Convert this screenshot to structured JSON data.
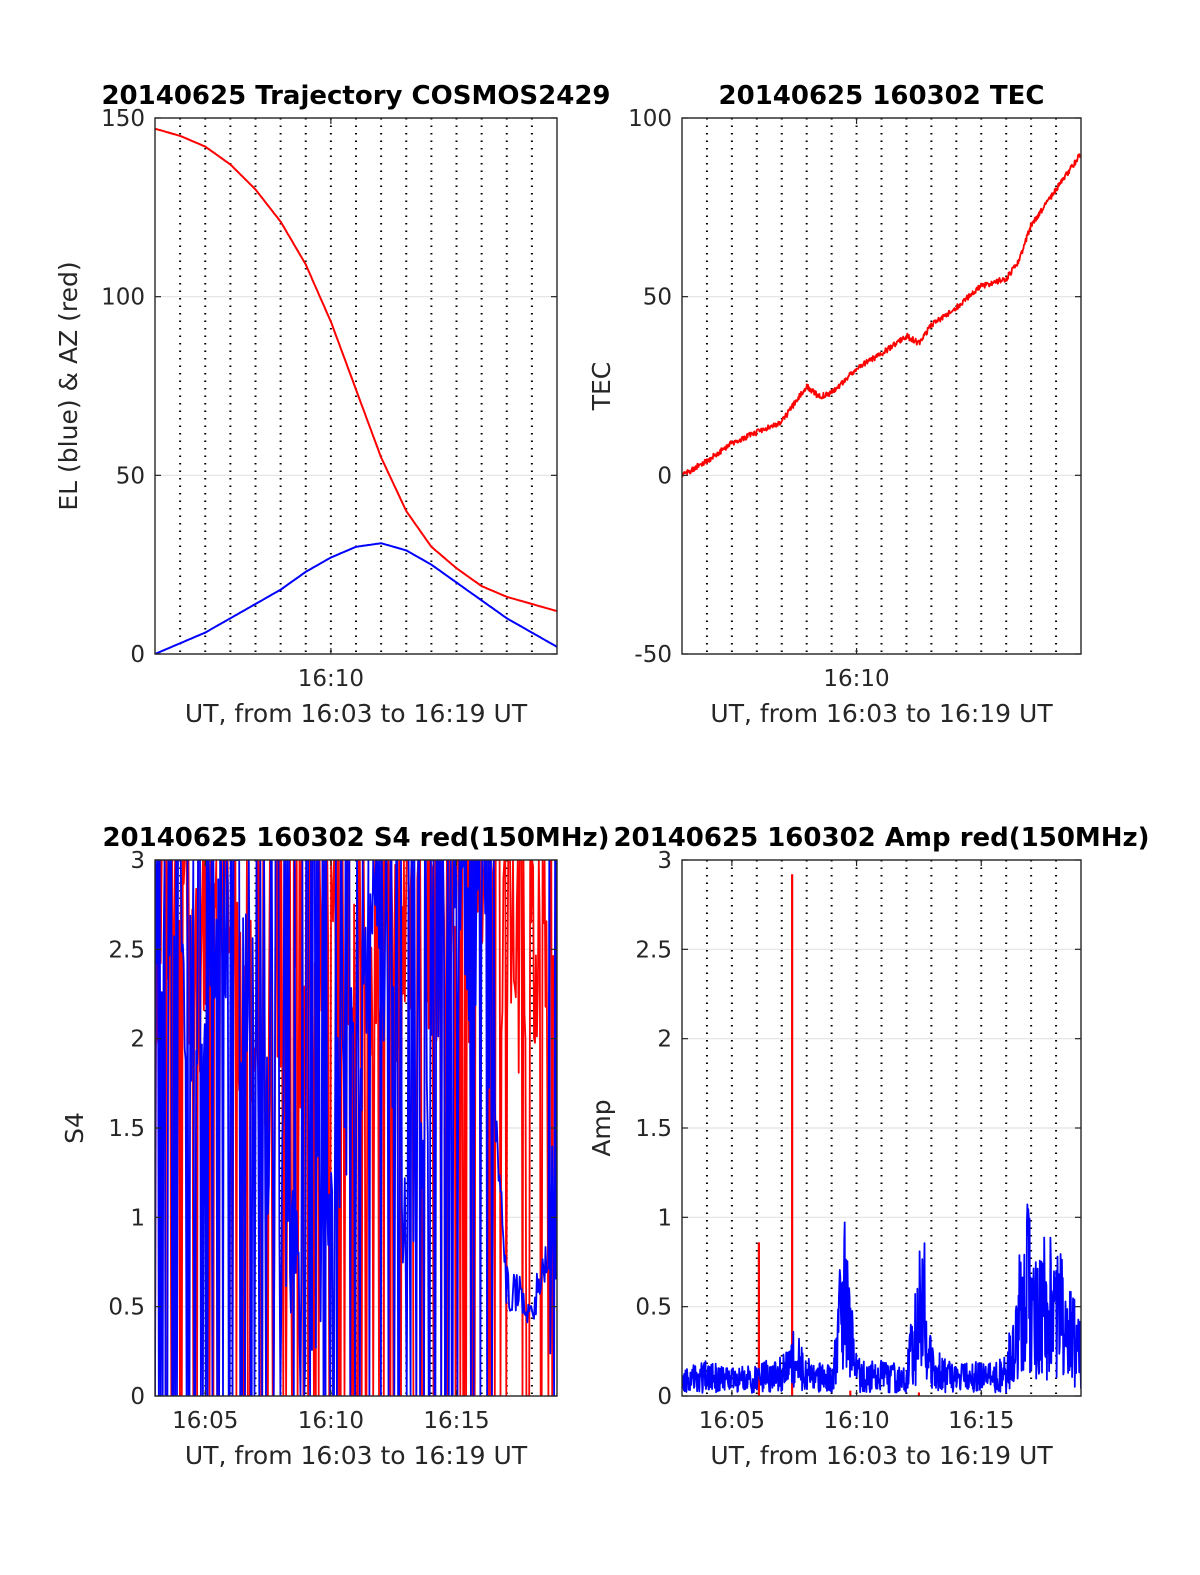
{
  "chart_data": [
    {
      "type": "line",
      "title": "20140625 Trajectory COSMOS2429",
      "xlabel": "UT, from 16:03 to 16:19 UT",
      "ylabel": "EL (blue) & AZ (red)",
      "xlim": [
        "16:03",
        "16:19"
      ],
      "ylim": [
        0,
        150
      ],
      "x_ticks": [
        "16:10"
      ],
      "y_ticks": [
        "0",
        "50",
        "100",
        "150"
      ],
      "grid": "dotted vertical every 1 min, horizontal at major ticks",
      "series": [
        {
          "color": "#ff0000",
          "x": [
            "16:03",
            "16:04",
            "16:05",
            "16:06",
            "16:07",
            "16:08",
            "16:09",
            "16:10",
            "16:11",
            "16:12",
            "16:13",
            "16:14",
            "16:15",
            "16:16",
            "16:17",
            "16:18",
            "16:19"
          ],
          "values": [
            147,
            145,
            142,
            137,
            130,
            121,
            109,
            93,
            74,
            55,
            40,
            30,
            24,
            19,
            16,
            14,
            12
          ]
        },
        {
          "color": "#0000ff",
          "x": [
            "16:03",
            "16:04",
            "16:05",
            "16:06",
            "16:07",
            "16:08",
            "16:09",
            "16:10",
            "16:11",
            "16:12",
            "16:13",
            "16:14",
            "16:15",
            "16:16",
            "16:17",
            "16:18",
            "16:19"
          ],
          "values": [
            0,
            3,
            6,
            10,
            14,
            18,
            23,
            27,
            30,
            31,
            29,
            25,
            20,
            15,
            10,
            6,
            2
          ]
        }
      ]
    },
    {
      "type": "line",
      "title": "20140625 160302 TEC",
      "xlabel": "UT, from 16:03 to 16:19 UT",
      "ylabel": "TEC",
      "xlim": [
        "16:03",
        "16:19"
      ],
      "ylim": [
        -50,
        100
      ],
      "x_ticks": [
        "16:10"
      ],
      "y_ticks": [
        "-50",
        "0",
        "50",
        "100"
      ],
      "series": [
        {
          "color": "#ff0000",
          "x": [
            "16:03",
            "16:04",
            "16:05",
            "16:06",
            "16:07",
            "16:08",
            "16:08:30",
            "16:09",
            "16:10",
            "16:11",
            "16:12",
            "16:12:30",
            "16:13",
            "16:14",
            "16:15",
            "16:16",
            "16:16:30",
            "16:17",
            "16:18",
            "16:19"
          ],
          "values": [
            0,
            4,
            9,
            12,
            15,
            25,
            22,
            23,
            30,
            34,
            39,
            37,
            42,
            47,
            53,
            55,
            60,
            70,
            80,
            90
          ]
        }
      ]
    },
    {
      "type": "line",
      "title": "20140625 160302 S4 red(150MHz)",
      "xlabel": "UT, from 16:03 to 16:19 UT",
      "ylabel": "S4",
      "xlim": [
        "16:03",
        "16:19"
      ],
      "ylim": [
        0,
        3
      ],
      "x_ticks": [
        "16:05",
        "16:10",
        "16:15"
      ],
      "y_ticks": [
        "0",
        "0.5",
        "1",
        "1.5",
        "2",
        "2.5",
        "3"
      ],
      "series": [
        {
          "color": "#ff0000",
          "x": [
            "16:03",
            "16:04",
            "16:05",
            "16:06",
            "16:07",
            "16:08",
            "16:09",
            "16:10",
            "16:11",
            "16:12",
            "16:13",
            "16:14",
            "16:15",
            "16:16",
            "16:17",
            "16:18",
            "16:19"
          ],
          "values": [
            2.2,
            2.6,
            2.3,
            2.4,
            2.1,
            1.5,
            2.3,
            2.5,
            2.4,
            2.2,
            2.6,
            2.5,
            2.4,
            2.7,
            2.3,
            2.4,
            1.9
          ]
        },
        {
          "color": "#0000ff",
          "x": [
            "16:03",
            "16:04",
            "16:05",
            "16:06",
            "16:07",
            "16:08",
            "16:09",
            "16:10",
            "16:11",
            "16:12",
            "16:13",
            "16:14",
            "16:15",
            "16:16",
            "16:17",
            "16:18",
            "16:19"
          ],
          "values": [
            2.5,
            2.4,
            2.3,
            2.6,
            2.0,
            1.1,
            0.5,
            1.3,
            1.8,
            2.6,
            0.9,
            2.2,
            2.6,
            2.7,
            0.6,
            0.5,
            0.9
          ]
        }
      ]
    },
    {
      "type": "line",
      "title": "20140625 160302 Amp red(150MHz)",
      "xlabel": "UT, from 16:03 to 16:19 UT",
      "ylabel": "Amp",
      "xlim": [
        "16:03",
        "16:19"
      ],
      "ylim": [
        0,
        3
      ],
      "x_ticks": [
        "16:05",
        "16:10",
        "16:15"
      ],
      "y_ticks": [
        "0",
        "0.5",
        "1",
        "1.5",
        "2",
        "2.5",
        "3"
      ],
      "series": [
        {
          "color": "#ff0000",
          "x": [
            "16:06:05",
            "16:07:25",
            "16:09:45",
            "16:12:30"
          ],
          "values": [
            0.86,
            2.92,
            0.03,
            0.02
          ]
        },
        {
          "color": "#0000ff",
          "x": [
            "16:03",
            "16:04",
            "16:05",
            "16:06",
            "16:07",
            "16:07:30",
            "16:08",
            "16:09",
            "16:09:30",
            "16:10",
            "16:11",
            "16:12",
            "16:12:40",
            "16:13",
            "16:14",
            "16:15",
            "16:16",
            "16:16:50",
            "16:17",
            "16:18",
            "16:19"
          ],
          "values": [
            0.15,
            0.18,
            0.14,
            0.17,
            0.2,
            0.35,
            0.2,
            0.15,
            0.95,
            0.2,
            0.18,
            0.16,
            0.95,
            0.25,
            0.16,
            0.18,
            0.2,
            1.03,
            0.85,
            0.8,
            0.4
          ]
        }
      ]
    }
  ]
}
